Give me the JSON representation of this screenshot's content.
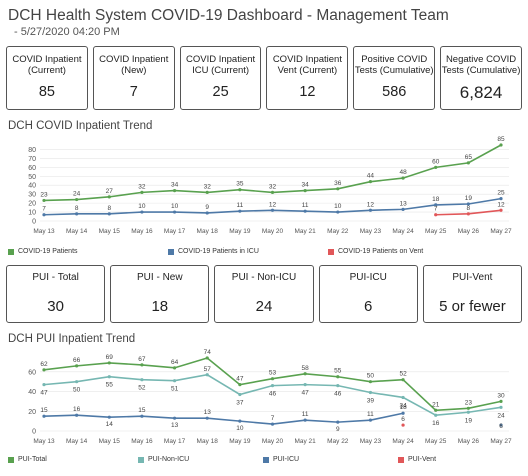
{
  "header": {
    "title": "DCH Health System COVID-19 Dashboard - Management Team",
    "subtitle": "- 5/27/2020 04:20 PM"
  },
  "kpis": [
    {
      "label": "COVID Inpatient (Current)",
      "value": "85"
    },
    {
      "label": "COVID Inpatient (New)",
      "value": "7"
    },
    {
      "label": "COVID Inpatient ICU (Current)",
      "value": "25"
    },
    {
      "label": "COVID Inpatient Vent (Current)",
      "value": "12"
    },
    {
      "label": "Positive COVID Tests (Cumulative)",
      "value": "586"
    },
    {
      "label": "Negative COVID Tests (Cumulative)",
      "value": "6,824"
    }
  ],
  "pui_kpis": [
    {
      "label": "PUI - Total",
      "value": "30"
    },
    {
      "label": "PUI - New",
      "value": "18"
    },
    {
      "label": "PUI - Non-ICU",
      "value": "24"
    },
    {
      "label": "PUI-ICU",
      "value": "6"
    },
    {
      "label": "PUI-Vent",
      "value": "5 or fewer"
    }
  ],
  "colors": {
    "green": "#59a14f",
    "blue": "#4e79a7",
    "red": "#e15759",
    "teal": "#76b7b2",
    "border": "#555555"
  },
  "chart_data": [
    {
      "type": "line",
      "title": "DCH COVID Inpatient Trend",
      "x": [
        "May 13",
        "May 14",
        "May 15",
        "May 16",
        "May 17",
        "May 18",
        "May 19",
        "May 20",
        "May 21",
        "May 22",
        "May 23",
        "May 24",
        "May 25",
        "May 26",
        "May 27"
      ],
      "yticks": [
        0,
        10,
        20,
        30,
        40,
        50,
        60,
        70,
        80
      ],
      "ylim": [
        0,
        85
      ],
      "grid": true,
      "legend_position": "bottom",
      "series": [
        {
          "name": "COVID-19 Patients",
          "color": "#59a14f",
          "values": [
            23,
            24,
            27,
            32,
            34,
            32,
            35,
            32,
            34,
            36,
            44,
            48,
            60,
            65,
            85
          ]
        },
        {
          "name": "COVID-19 Patients in ICU",
          "color": "#4e79a7",
          "values": [
            7,
            8,
            8,
            10,
            10,
            9,
            11,
            12,
            11,
            10,
            12,
            13,
            18,
            19,
            25
          ]
        },
        {
          "name": "COVID-19 Patients on Vent",
          "color": "#e15759",
          "values": [
            null,
            null,
            null,
            null,
            null,
            null,
            null,
            null,
            null,
            null,
            null,
            null,
            7,
            8,
            12
          ]
        }
      ]
    },
    {
      "type": "line",
      "title": "DCH PUI Inpatient Trend",
      "x": [
        "May 13",
        "May 14",
        "May 15",
        "May 16",
        "May 17",
        "May 18",
        "May 19",
        "May 20",
        "May 21",
        "May 22",
        "May 23",
        "May 24",
        "May 25",
        "May 26",
        "May 27"
      ],
      "yticks": [
        0,
        20,
        40,
        60
      ],
      "ylim": [
        0,
        75
      ],
      "grid": true,
      "legend_position": "bottom",
      "series": [
        {
          "name": "PUI-Total",
          "color": "#59a14f",
          "values": [
            62,
            66,
            69,
            67,
            64,
            74,
            47,
            53,
            58,
            55,
            50,
            52,
            21,
            23,
            30
          ]
        },
        {
          "name": "PUI-Non-ICU",
          "color": "#76b7b2",
          "values": [
            47,
            50,
            55,
            52,
            51,
            57,
            37,
            46,
            47,
            46,
            39,
            34,
            16,
            19,
            24
          ]
        },
        {
          "name": "PUI-ICU",
          "color": "#4e79a7",
          "values": [
            15,
            16,
            14,
            15,
            13,
            13,
            10,
            7,
            11,
            9,
            11,
            18,
            null,
            null,
            6
          ]
        },
        {
          "name": "PUI-Vent",
          "color": "#e15759",
          "values": [
            null,
            null,
            null,
            null,
            null,
            null,
            null,
            null,
            null,
            null,
            null,
            6,
            null,
            null,
            null
          ]
        }
      ]
    }
  ]
}
